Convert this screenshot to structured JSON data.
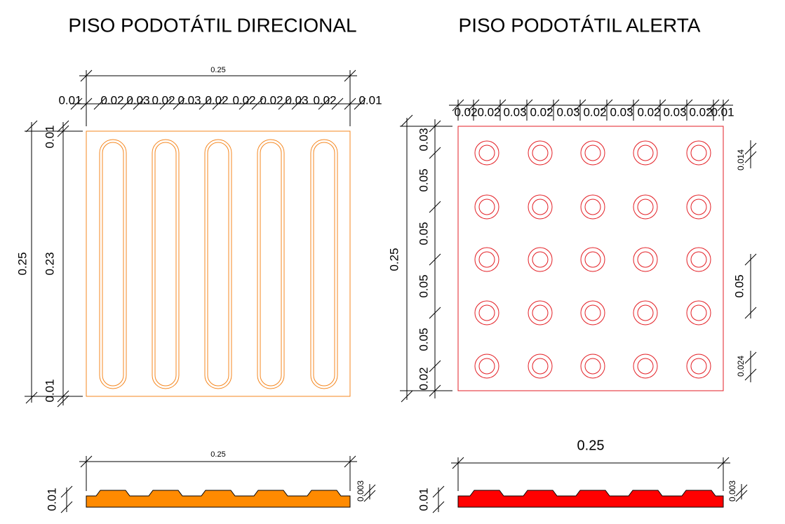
{
  "left": {
    "title": "PISO PODOTÁTIL DIRECIONAL",
    "plan": {
      "width": "0.25",
      "segments": [
        "0.01",
        "0.02",
        "0.03",
        "0.02",
        "0.03",
        "0.02",
        "0.02",
        "0.02",
        "0.03",
        "0.02",
        "0.01"
      ],
      "height": "0.25",
      "rows": [
        "0.01",
        "0.23",
        "0.01"
      ]
    },
    "profile": {
      "width": "0.25",
      "thickness": "0.01",
      "relief": "0.003"
    }
  },
  "right": {
    "title": "PISO PODOTÁTIL ALERTA",
    "plan": {
      "segments": [
        "0.02",
        "0.02",
        "0.03",
        "0.02",
        "0.03",
        "0.02",
        "0.03",
        "0.02",
        "0.03",
        "0.02",
        "0.01"
      ],
      "height": "0.25",
      "rows": [
        "0.03",
        "0.05",
        "0.05",
        "0.05",
        "0.05",
        "0.02"
      ],
      "dot": "0.014",
      "pitch": "0.05",
      "ring": "0.024"
    },
    "profile": {
      "width": "0.25",
      "thickness": "0.01",
      "relief": "0.003"
    }
  }
}
